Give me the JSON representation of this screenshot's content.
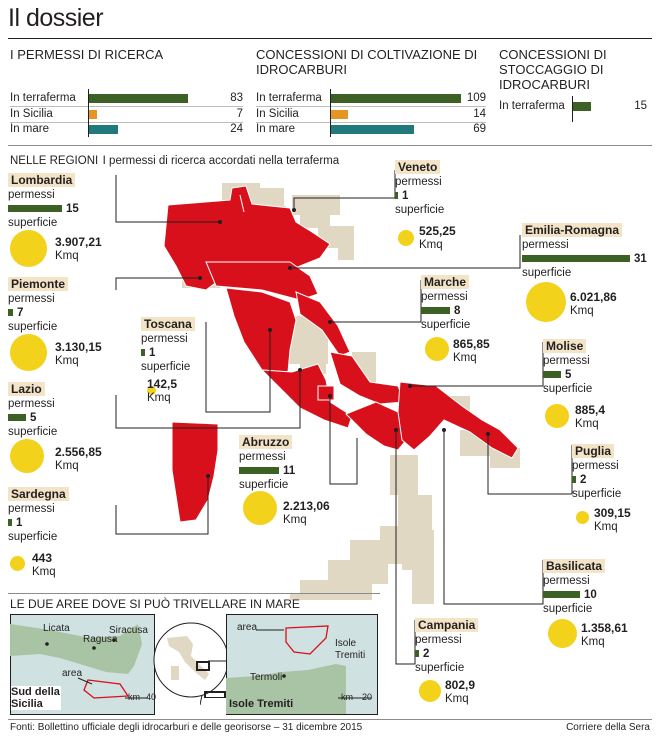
{
  "title": "Il dossier",
  "summary": {
    "col1": {
      "heading": "I PERMESSI DI RICERCA",
      "rows": [
        {
          "label": "In terraferma",
          "value": 83,
          "color": "#3d6125"
        },
        {
          "label": "In Sicilia",
          "value": 7,
          "color": "#e69524"
        },
        {
          "label": "In mare",
          "value": 24,
          "color": "#20797a"
        }
      ]
    },
    "col2": {
      "heading": "CONCESSIONI DI COLTIVAZIONE DI IDROCARBURI",
      "rows": [
        {
          "label": "In terraferma",
          "value": 109,
          "color": "#3d6125"
        },
        {
          "label": "In Sicilia",
          "value": 14,
          "color": "#e69524"
        },
        {
          "label": "In mare",
          "value": 69,
          "color": "#20797a"
        }
      ]
    },
    "col3": {
      "heading": "CONCESSIONI DI STOCCAGGIO DI IDROCARBURI",
      "rows": [
        {
          "label": "In terraferma",
          "value": 15,
          "color": "#3d6125"
        }
      ]
    }
  },
  "regions_section": {
    "title": "NELLE REGIONI",
    "subtitle": "I permessi di ricerca accordati nella terraferma"
  },
  "labels": {
    "permessi": "permessi",
    "superficie": "superficie",
    "unit": "Kmq"
  },
  "regions": {
    "lombardia": {
      "name": "Lombardia",
      "permessi": 15,
      "area": "3.907,21"
    },
    "piemonte": {
      "name": "Piemonte",
      "permessi": 7,
      "area": "3.130,15"
    },
    "lazio": {
      "name": "Lazio",
      "permessi": 5,
      "area": "2.556,85"
    },
    "sardegna": {
      "name": "Sardegna",
      "permessi": 1,
      "area": "443"
    },
    "toscana": {
      "name": "Toscana",
      "permessi": 1,
      "area": "142,5"
    },
    "veneto": {
      "name": "Veneto",
      "permessi": 1,
      "area": "525,25"
    },
    "emilia": {
      "name": "Emilia-Romagna",
      "permessi": 31,
      "area": "6.021,86"
    },
    "marche": {
      "name": "Marche",
      "permessi": 8,
      "area": "865,85"
    },
    "molise": {
      "name": "Molise",
      "permessi": 5,
      "area": "885,4"
    },
    "abruzzo": {
      "name": "Abruzzo",
      "permessi": 11,
      "area": "2.213,06"
    },
    "puglia": {
      "name": "Puglia",
      "permessi": 2,
      "area": "309,15"
    },
    "basilicata": {
      "name": "Basilicata",
      "permessi": 10,
      "area": "1.358,61"
    },
    "campania": {
      "name": "Campania",
      "permessi": 2,
      "area": "802,9"
    }
  },
  "sea_section": {
    "title": "LE DUE AREE DOVE SI PUÒ TRIVELLARE IN MARE",
    "sicily": {
      "label": "Sud della Sicilia",
      "places": [
        "Licata",
        "Ragusa",
        "Siracusa"
      ],
      "area_label": "area",
      "scale": "40",
      "scale_unit": "km"
    },
    "tremiti": {
      "label": "Isole Tremiti",
      "places": [
        "Isole Tremiti",
        "Termoli"
      ],
      "area_label": "area",
      "scale": "20",
      "scale_unit": "km"
    }
  },
  "colors": {
    "regions_with_permits": "#d7101b",
    "other_land": "#e0d8c3",
    "permits_bar": "#3d6125",
    "area_circle": "#f2d21b",
    "label_bg": "#f3e4c7"
  },
  "footer": {
    "source": "Fonti: Bollettino ufficiale degli idrocarburi e delle georisorse – 31 dicembre 2015",
    "credit": "Corriere della Sera"
  }
}
